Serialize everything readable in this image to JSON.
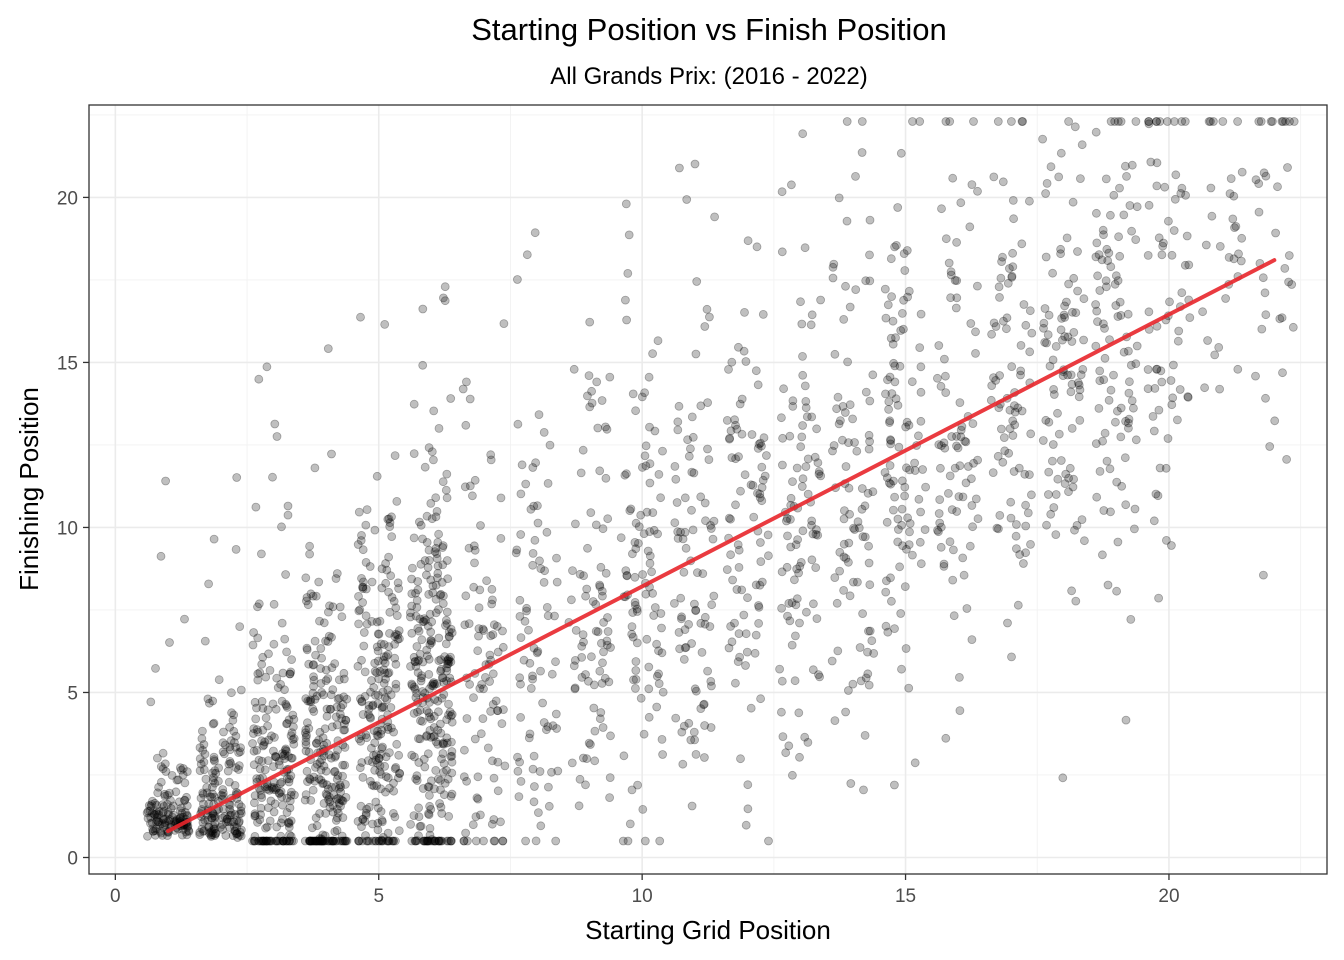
{
  "chart_data": {
    "type": "scatter",
    "title": "Starting Position vs Finish Position",
    "subtitle": "All Grands Prix: (2016 - 2022)",
    "xlabel": "Starting Grid Position",
    "ylabel": "Finishing Position",
    "xlim": [
      -0.5,
      23.0
    ],
    "ylim": [
      -0.5,
      22.8
    ],
    "x_ticks": [
      0,
      5,
      10,
      15,
      20
    ],
    "y_ticks": [
      0,
      5,
      10,
      15,
      20
    ],
    "grid": true,
    "point_style": {
      "color": "#000000",
      "alpha": 0.25,
      "radius": 4
    },
    "trendline": {
      "type": "linear",
      "x": [
        1,
        22
      ],
      "y": [
        0.8,
        18.1
      ],
      "color": "#e8262b"
    },
    "points_shown": 2600,
    "grid_positions": 22,
    "finish_spread_sd": 3.2,
    "outlier_share": 0.08,
    "points": []
  }
}
